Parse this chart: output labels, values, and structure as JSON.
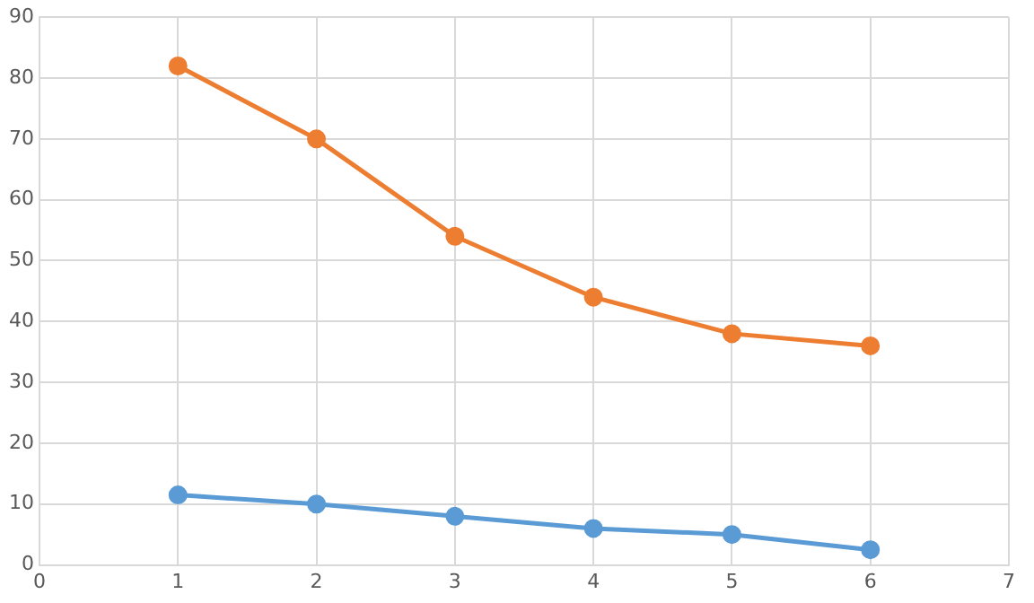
{
  "chart_data": {
    "type": "line",
    "x": [
      1,
      2,
      3,
      4,
      5,
      6
    ],
    "series": [
      {
        "color": "#5b9bd5",
        "values": [
          11.5,
          10,
          8,
          6,
          5,
          2.5
        ]
      },
      {
        "color": "#ed7d31",
        "values": [
          82,
          70,
          54,
          44,
          38,
          36
        ]
      }
    ],
    "xlim": [
      0,
      7
    ],
    "xticks": [
      0,
      1,
      2,
      3,
      4,
      5,
      6,
      7
    ],
    "ylim": [
      0,
      90
    ],
    "yticks": [
      0,
      10,
      20,
      30,
      40,
      50,
      60,
      70,
      80,
      90
    ],
    "grid": true,
    "marker": "circle",
    "line_style": "solid"
  }
}
